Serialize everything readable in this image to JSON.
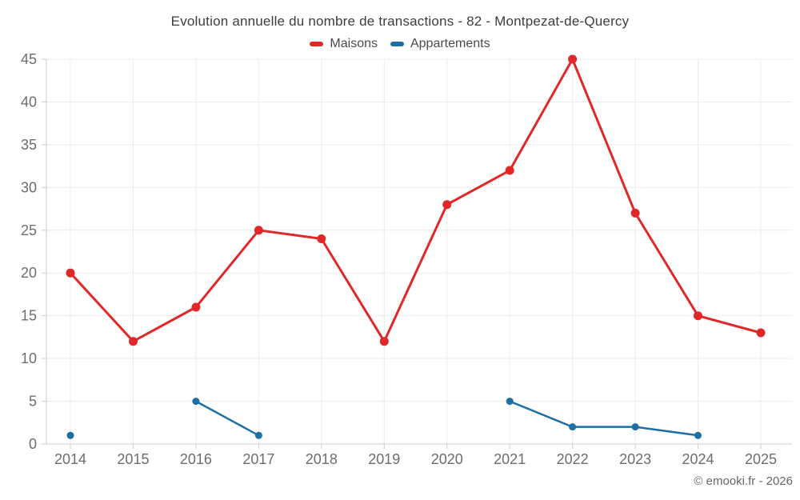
{
  "chart_data": {
    "type": "line",
    "title": "Evolution annuelle du nombre de transactions - 82 - Montpezat-de-Quercy",
    "xlabel": "",
    "ylabel": "",
    "categories": [
      "2014",
      "2015",
      "2016",
      "2017",
      "2018",
      "2019",
      "2020",
      "2021",
      "2022",
      "2023",
      "2024",
      "2025"
    ],
    "series": [
      {
        "name": "Maisons",
        "color": "#e02828",
        "values": [
          20,
          12,
          16,
          25,
          24,
          12,
          28,
          32,
          45,
          27,
          15,
          13
        ]
      },
      {
        "name": "Appartements",
        "color": "#1b6fa3",
        "values": [
          1,
          null,
          5,
          1,
          null,
          null,
          null,
          5,
          2,
          2,
          1,
          null
        ]
      }
    ],
    "ylim": [
      0,
      45
    ],
    "yticks": [
      0,
      5,
      10,
      15,
      20,
      25,
      30,
      35,
      40,
      45
    ],
    "grid": true,
    "legend_position": "top"
  },
  "footer": {
    "credit": "© emooki.fr - 2026"
  },
  "colors": {
    "maisons": "#e02828",
    "appartements": "#1b6fa3",
    "gridline": "#ececec",
    "axis_line": "#cccccc",
    "tick_label": "#6d6d6d",
    "title_text": "#3d3d3d",
    "legend_text": "#4a4a4a",
    "footer_text": "#666666"
  }
}
